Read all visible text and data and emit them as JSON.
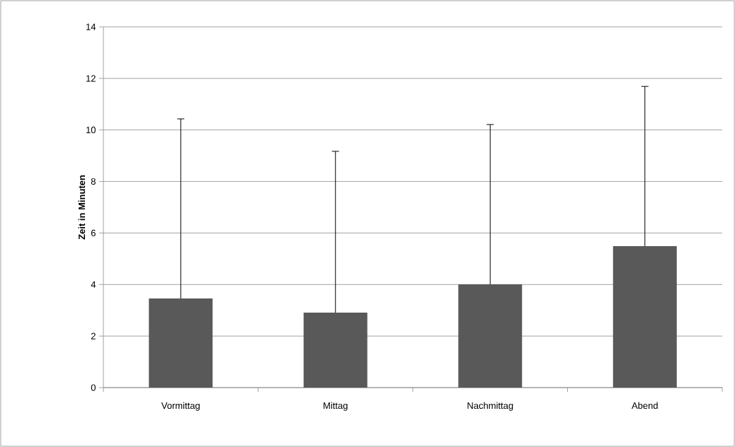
{
  "chart_data": {
    "type": "bar",
    "ylabel": "Zeit in Minuten",
    "categories": [
      "Vormittag",
      "Mittag",
      "Nachmittag",
      "Abend"
    ],
    "values": [
      3.46,
      2.91,
      4.01,
      5.49
    ],
    "errors": [
      [
        3.46,
        10.43
      ],
      [
        2.91,
        9.17
      ],
      [
        4.01,
        10.21
      ],
      [
        5.49,
        11.69
      ]
    ],
    "color": "#595959",
    "ylim": [
      0,
      14
    ],
    "yticks": [
      0,
      2,
      4,
      6,
      8,
      10,
      12,
      14
    ],
    "grid": "y"
  }
}
